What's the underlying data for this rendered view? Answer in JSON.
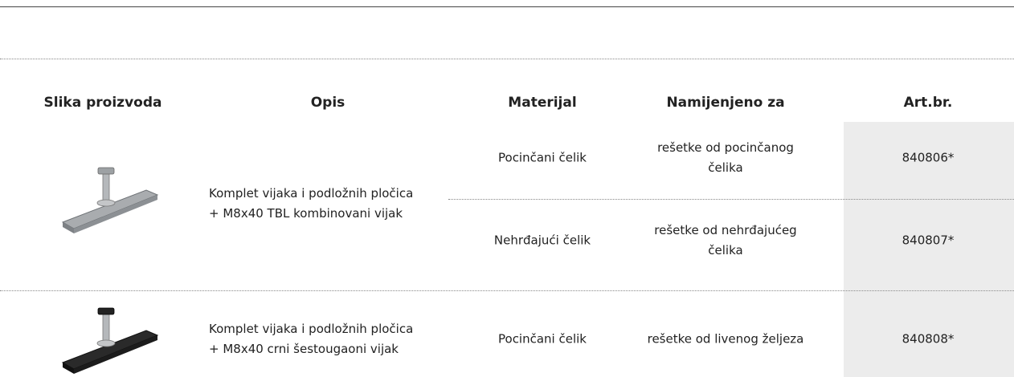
{
  "table": {
    "headers": [
      "Slika proizvoda",
      "Opis",
      "Materijal",
      "Namijenjeno za",
      "Art.br."
    ],
    "rows": [
      {
        "description": "Komplet vijaka i podložnih pločica\n+ M8x40 TBL kombinovani vijak",
        "variants": [
          {
            "material": "Pocinčani čelik",
            "purpose": "rešetke od pocinčanog\nčelika",
            "article": "840806*"
          },
          {
            "material": "Nehrđajući čelik",
            "purpose": "rešetke od nehrđajućeg\nčelika",
            "article": "840807*"
          }
        ]
      },
      {
        "description": "Komplet vijaka i podložnih pločica\n+ M8x40 crni šestougaoni vijak",
        "variants": [
          {
            "material": "Pocinčani čelik",
            "purpose": "rešetke od livenog željeza",
            "article": "840808*"
          }
        ]
      }
    ]
  }
}
